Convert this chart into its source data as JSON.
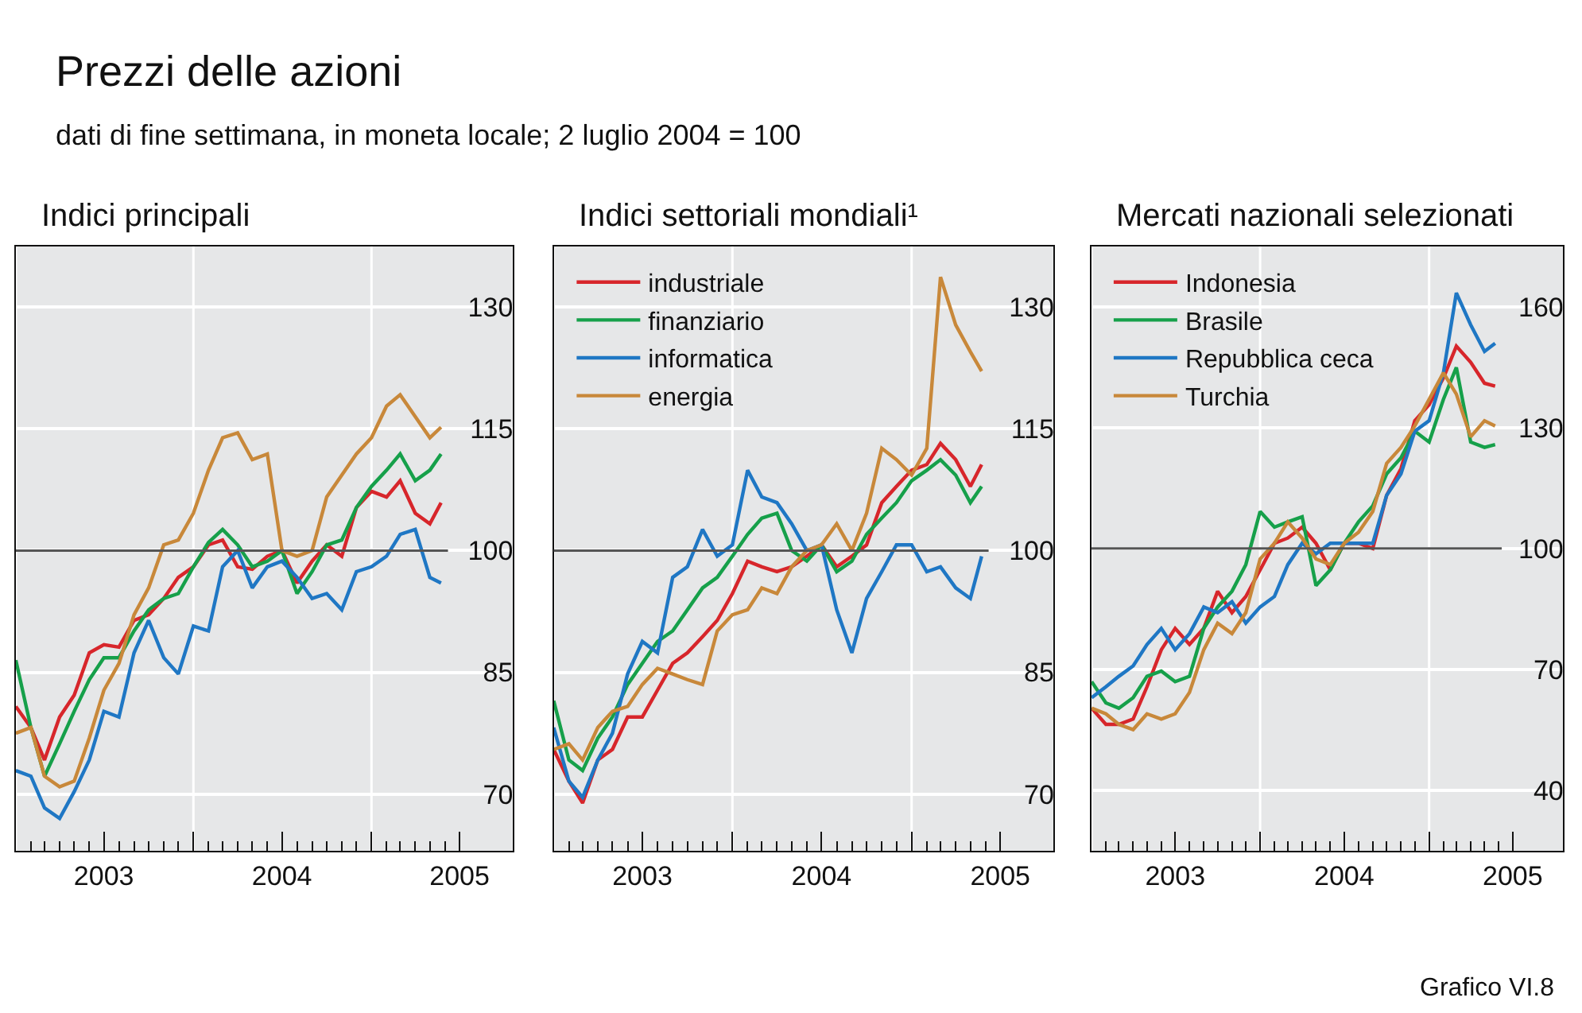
{
  "chart_data": [
    {
      "type": "other",
      "title": "Prezzi delle azioni",
      "subtitle": "dati di fine settimana, in moneta locale; 2 luglio 2004 = 100",
      "annotations": [
        "Grafico VI.8"
      ]
    },
    {
      "type": "line",
      "title": "Indici principali",
      "legend": false,
      "grid": true,
      "x": [
        "2003-01-01",
        "2003-02-01",
        "2003-03-01",
        "2003-04-01",
        "2003-05-01",
        "2003-06-01",
        "2003-07-01",
        "2003-08-01",
        "2003-09-01",
        "2003-10-01",
        "2003-11-01",
        "2003-12-01",
        "2004-01-01",
        "2004-02-01",
        "2004-03-01",
        "2004-04-01",
        "2004-05-01",
        "2004-06-01",
        "2004-07-01",
        "2004-08-01",
        "2004-09-01",
        "2004-10-01",
        "2004-11-01",
        "2004-12-01",
        "2005-01-01",
        "2005-02-01",
        "2005-03-01",
        "2005-04-01",
        "2005-05-01",
        "2005-05-24"
      ],
      "xlim": [
        "2003-01-01",
        "2005-10-18"
      ],
      "xticks": [
        {
          "value": "2003-01-01",
          "label": null
        },
        {
          "value": "2003-07-01",
          "label": "2003"
        },
        {
          "value": "2004-01-01",
          "label": null
        },
        {
          "value": "2004-07-01",
          "label": "2004"
        },
        {
          "value": "2005-01-01",
          "label": null
        },
        {
          "value": "2005-07-01",
          "label": "2005"
        }
      ],
      "ylim": [
        63,
        137.5
      ],
      "yticks": [
        70,
        85,
        100,
        115,
        130
      ],
      "ref_lines": [
        {
          "axis": "y",
          "value": 100,
          "color": "#555555"
        }
      ],
      "series": [
        {
          "color": "#d7262b",
          "values": [
            80.8,
            78.2,
            74.2,
            79.5,
            82.2,
            87.4,
            88.4,
            88.1,
            91.4,
            92.1,
            94.1,
            96.7,
            98.0,
            100.7,
            101.3,
            98.0,
            97.7,
            99.3,
            100,
            96.0,
            98.7,
            100.7,
            99.3,
            105.3,
            107.3,
            106.6,
            108.6,
            104.6,
            103.3,
            105.9
          ]
        },
        {
          "color": "#16a04a",
          "values": [
            86.5,
            78.2,
            72.2,
            76.2,
            80.2,
            84.1,
            86.8,
            86.8,
            90.1,
            92.7,
            94.1,
            94.7,
            98.0,
            101.0,
            102.6,
            100.7,
            98.0,
            98.7,
            100,
            94.7,
            97.4,
            100.7,
            101.3,
            105.3,
            107.9,
            109.9,
            111.9,
            108.6,
            109.9,
            111.9
          ]
        },
        {
          "color": "#1f77c4",
          "values": [
            72.9,
            72.2,
            68.3,
            67.0,
            70.3,
            74.2,
            80.2,
            79.5,
            87.4,
            91.4,
            86.8,
            84.8,
            90.7,
            90.1,
            98.0,
            100,
            95.4,
            98.0,
            98.7,
            96.7,
            94.1,
            94.7,
            92.7,
            97.4,
            98.0,
            99.3,
            102.0,
            102.6,
            96.7,
            96.0
          ]
        },
        {
          "color": "#c8883a",
          "values": [
            77.5,
            78.2,
            72.2,
            70.9,
            71.6,
            76.9,
            82.8,
            86.1,
            92.1,
            95.4,
            100.7,
            101.3,
            104.6,
            109.9,
            113.9,
            114.5,
            111.2,
            111.9,
            100,
            99.3,
            100,
            106.6,
            109.3,
            111.9,
            113.9,
            117.8,
            119.2,
            116.5,
            113.9,
            115.2
          ]
        }
      ]
    },
    {
      "type": "line",
      "title": "Indici settoriali mondiali¹",
      "legend": "top left",
      "grid": true,
      "x": [
        "2003-01-01",
        "2003-02-01",
        "2003-03-01",
        "2003-04-01",
        "2003-05-01",
        "2003-06-01",
        "2003-07-01",
        "2003-08-01",
        "2003-09-01",
        "2003-10-01",
        "2003-11-01",
        "2003-12-01",
        "2004-01-01",
        "2004-02-01",
        "2004-03-01",
        "2004-04-01",
        "2004-05-01",
        "2004-06-01",
        "2004-07-01",
        "2004-08-01",
        "2004-09-01",
        "2004-10-01",
        "2004-11-01",
        "2004-12-01",
        "2005-01-01",
        "2005-02-01",
        "2005-03-01",
        "2005-04-01",
        "2005-05-01",
        "2005-05-24"
      ],
      "xlim": [
        "2003-01-01",
        "2005-10-18"
      ],
      "xticks": [
        {
          "value": "2003-01-01",
          "label": null
        },
        {
          "value": "2003-07-01",
          "label": "2003"
        },
        {
          "value": "2004-01-01",
          "label": null
        },
        {
          "value": "2004-07-01",
          "label": "2004"
        },
        {
          "value": "2005-01-01",
          "label": null
        },
        {
          "value": "2005-07-01",
          "label": "2005"
        }
      ],
      "ylim": [
        63,
        137.5
      ],
      "yticks": [
        70,
        85,
        100,
        115,
        130
      ],
      "ref_lines": [
        {
          "axis": "y",
          "value": 100,
          "color": "#555555"
        }
      ],
      "series": [
        {
          "name": "industriale",
          "color": "#d7262b",
          "values": [
            75.5,
            71.6,
            68.9,
            74.2,
            75.5,
            79.5,
            79.5,
            82.8,
            86.1,
            87.4,
            89.4,
            91.4,
            94.7,
            98.7,
            98.0,
            97.4,
            98.0,
            99.3,
            100.7,
            98.0,
            99.3,
            100.7,
            105.9,
            107.9,
            109.9,
            110.6,
            113.2,
            111.2,
            107.9,
            110.6
          ]
        },
        {
          "name": "finanziario",
          "color": "#16a04a",
          "values": [
            81.5,
            74.2,
            72.9,
            76.9,
            79.5,
            83.5,
            86.1,
            88.8,
            90.1,
            92.7,
            95.4,
            96.7,
            99.3,
            102.0,
            104.0,
            104.6,
            100,
            98.7,
            100.7,
            97.4,
            98.7,
            102.0,
            104.0,
            105.9,
            108.6,
            109.9,
            111.2,
            109.3,
            105.9,
            107.9
          ]
        },
        {
          "name": "informatica",
          "color": "#1f77c4",
          "values": [
            78.2,
            71.6,
            69.6,
            74.2,
            77.5,
            84.8,
            88.8,
            87.4,
            96.7,
            98.0,
            102.6,
            99.3,
            100.7,
            109.9,
            106.6,
            105.9,
            103.3,
            100,
            100.7,
            92.7,
            87.4,
            94.1,
            97.4,
            100.7,
            100.7,
            97.4,
            98.0,
            95.4,
            94.1,
            99.3
          ]
        },
        {
          "name": "energia",
          "color": "#c8883a",
          "values": [
            75.5,
            76.2,
            74.2,
            78.2,
            80.2,
            80.8,
            83.5,
            85.5,
            84.8,
            84.1,
            83.5,
            90.1,
            92.1,
            92.7,
            95.4,
            94.7,
            98.0,
            100,
            100.7,
            103.3,
            100,
            104.6,
            112.6,
            111.2,
            109.3,
            112.6,
            133.7,
            127.8,
            124.5,
            122.1
          ]
        }
      ]
    },
    {
      "type": "line",
      "title": "Mercati nazionali selezionati",
      "legend": "top left",
      "grid": true,
      "x": [
        "2003-01-01",
        "2003-02-01",
        "2003-03-01",
        "2003-04-01",
        "2003-05-01",
        "2003-06-01",
        "2003-07-01",
        "2003-08-01",
        "2003-09-01",
        "2003-10-01",
        "2003-11-01",
        "2003-12-01",
        "2004-01-01",
        "2004-02-01",
        "2004-03-01",
        "2004-04-01",
        "2004-05-01",
        "2004-06-01",
        "2004-07-01",
        "2004-08-01",
        "2004-09-01",
        "2004-10-01",
        "2004-11-01",
        "2004-12-01",
        "2005-01-01",
        "2005-02-01",
        "2005-03-01",
        "2005-04-01",
        "2005-05-01",
        "2005-05-24"
      ],
      "xlim": [
        "2003-01-01",
        "2005-10-18"
      ],
      "xticks": [
        {
          "value": "2003-01-01",
          "label": null
        },
        {
          "value": "2003-07-01",
          "label": "2003"
        },
        {
          "value": "2004-01-01",
          "label": null
        },
        {
          "value": "2004-07-01",
          "label": "2004"
        },
        {
          "value": "2005-01-01",
          "label": null
        },
        {
          "value": "2005-07-01",
          "label": "2005"
        }
      ],
      "ylim": [
        25,
        175
      ],
      "yticks": [
        40,
        70,
        100,
        130,
        160
      ],
      "ref_lines": [
        {
          "axis": "y",
          "value": 100,
          "color": "#555555"
        }
      ],
      "series": [
        {
          "name": "Indonesia",
          "color": "#d7262b",
          "values": [
            60.4,
            56.4,
            56.4,
            57.7,
            65.7,
            74.9,
            80.2,
            76.2,
            80.2,
            89.4,
            84.1,
            88.1,
            94.7,
            101.3,
            102.6,
            105.3,
            101.3,
            94.7,
            101.3,
            101.3,
            100,
            113.2,
            119.8,
            131.7,
            135.7,
            142.3,
            150.2,
            146.2,
            141.0,
            140.3
          ]
        },
        {
          "name": "Brasile",
          "color": "#16a04a",
          "values": [
            67.0,
            61.7,
            60.4,
            63.0,
            68.3,
            69.6,
            67.0,
            68.3,
            80.2,
            85.5,
            89.4,
            96.0,
            109.2,
            105.3,
            106.6,
            107.9,
            90.8,
            94.7,
            101.3,
            106.6,
            110.6,
            118.5,
            122.5,
            129.1,
            126.4,
            137.0,
            144.9,
            126.4,
            125.1,
            125.8
          ]
        },
        {
          "name": "Repubblica ceca",
          "color": "#1f77c4",
          "values": [
            63.0,
            65.7,
            68.3,
            70.9,
            76.2,
            80.2,
            74.9,
            78.9,
            85.5,
            84.1,
            86.8,
            81.5,
            85.5,
            88.1,
            96.0,
            101.3,
            98.7,
            101.3,
            101.3,
            101.3,
            101.3,
            113.2,
            118.5,
            129.1,
            131.7,
            143.6,
            163.4,
            155.5,
            148.9,
            150.9
          ]
        },
        {
          "name": "Turchia",
          "color": "#c8883a",
          "values": [
            60.4,
            59.0,
            56.4,
            55.1,
            59.0,
            57.7,
            59.0,
            64.3,
            74.9,
            81.5,
            78.9,
            84.1,
            97.4,
            101.3,
            106.6,
            102.6,
            97.4,
            96.0,
            101.3,
            104.0,
            109.2,
            121.1,
            125.1,
            130.4,
            137.0,
            143.6,
            138.3,
            127.7,
            131.7,
            130.4
          ]
        }
      ]
    }
  ]
}
